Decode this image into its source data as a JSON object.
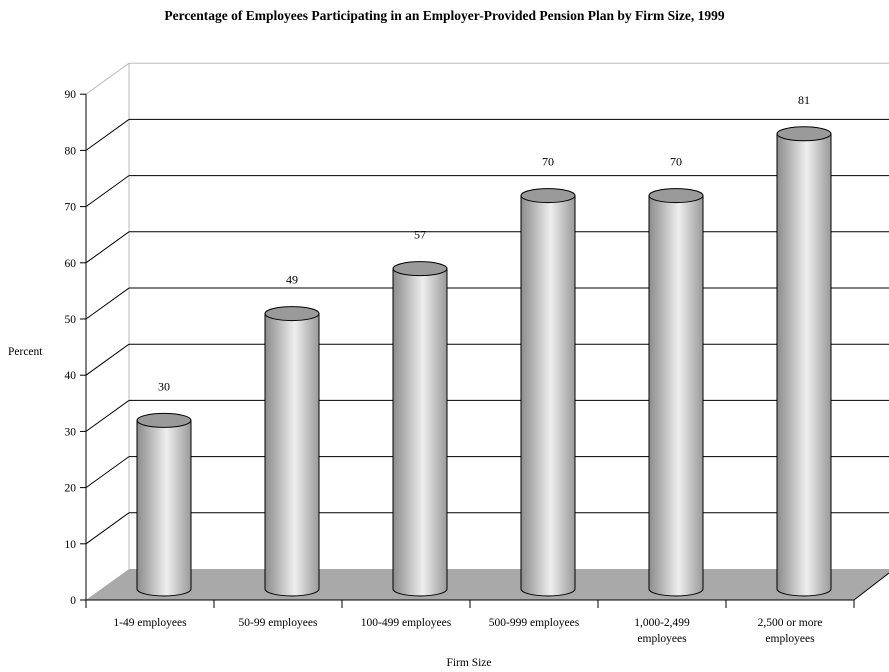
{
  "chart_data": {
    "type": "bar",
    "title": "Percentage of Employees Participating in an Employer-Provided Pension Plan by Firm Size, 1999",
    "xlabel": "Firm Size",
    "ylabel": "Percent",
    "ylim": [
      0,
      90
    ],
    "ytick_step": 10,
    "yticks": [
      "0",
      "10",
      "20",
      "30",
      "40",
      "50",
      "60",
      "70",
      "80",
      "90"
    ],
    "categories": [
      [
        "1-49 employees"
      ],
      [
        "50-99 employees"
      ],
      [
        "100-499 employees"
      ],
      [
        "500-999 employees"
      ],
      [
        "1,000-2,499",
        "employees"
      ],
      [
        "2,500 or more",
        "employees"
      ]
    ],
    "values": [
      30,
      49,
      57,
      70,
      70,
      81
    ],
    "data_labels": [
      "30",
      "49",
      "57",
      "70",
      "70",
      "81"
    ],
    "bar_shape": "cylinder",
    "grid": true,
    "colors": {
      "bar_dark": "#8c8c8c",
      "bar_light": "#eeeeee",
      "bar_top": "#9a9a9a",
      "floor": "#a9a9a9",
      "gridline": "#000000",
      "back_wall_edge": "#bbbbbb"
    }
  }
}
